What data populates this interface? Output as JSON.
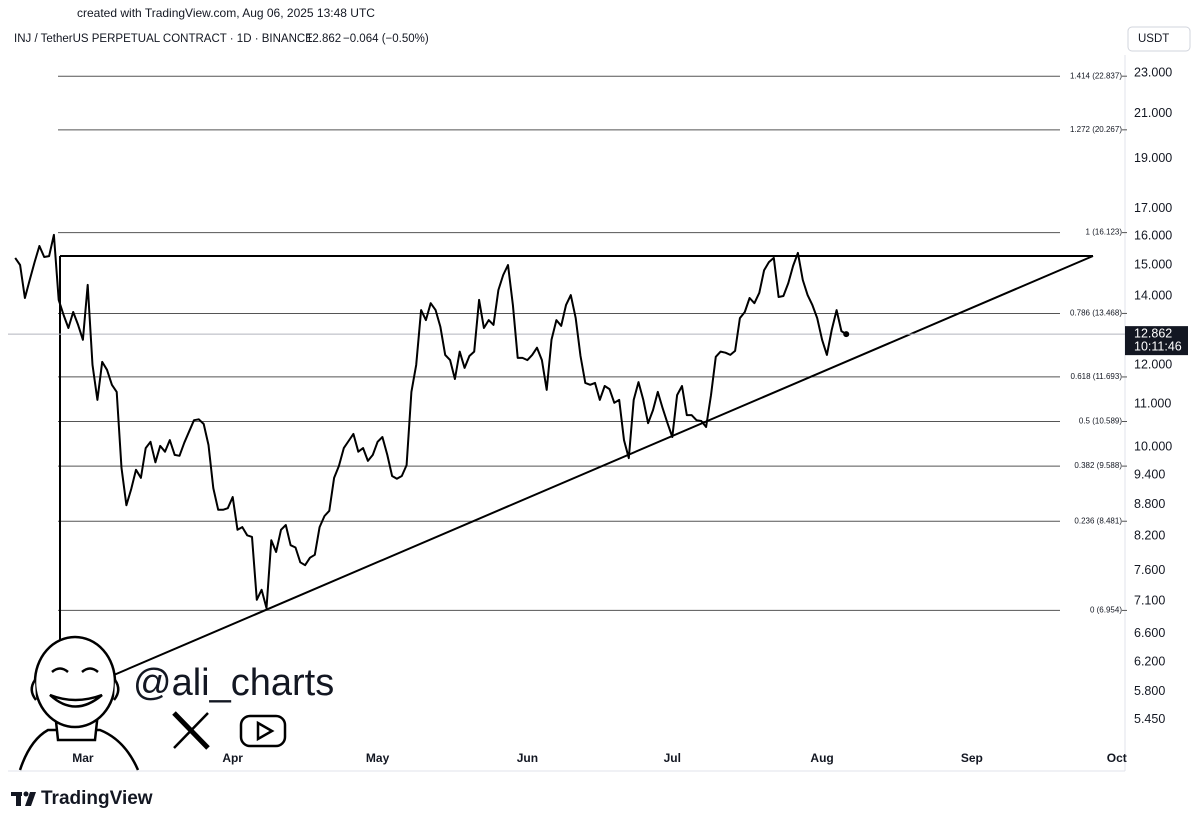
{
  "chart_data": {
    "type": "line",
    "attribution": "created with TradingView.com, Aug 06, 2025 13:48 UTC",
    "title": "INJ / TetherUS PERPETUAL CONTRACT · 1D · BINANCE",
    "change": "−0.064 (−0.50%)",
    "currency": "USDT",
    "countdown": "10:11:46",
    "watermark": "@ali_charts",
    "brand": "TradingView",
    "color": "#000000",
    "log": true,
    "grid": false,
    "xlim": [
      -1.5,
      229.7
    ],
    "ylim": [
      4.875,
      23.94
    ],
    "xticks": [
      {
        "value": 14,
        "label": "Mar"
      },
      {
        "value": 45,
        "label": "Apr"
      },
      {
        "value": 75,
        "label": "May"
      },
      {
        "value": 106,
        "label": "Jun"
      },
      {
        "value": 136,
        "label": "Jul"
      },
      {
        "value": 167,
        "label": "Aug"
      },
      {
        "value": 198,
        "label": "Sep"
      },
      {
        "value": 228,
        "label": "Oct"
      }
    ],
    "yticks": [
      {
        "value": 23,
        "label": "23.000"
      },
      {
        "value": 21,
        "label": "21.000"
      },
      {
        "value": 19,
        "label": "19.000"
      },
      {
        "value": 17,
        "label": "17.000"
      },
      {
        "value": 16,
        "label": "16.000"
      },
      {
        "value": 15,
        "label": "15.000"
      },
      {
        "value": 14,
        "label": "14.000"
      },
      {
        "value": 12,
        "label": "12.000"
      },
      {
        "value": 11,
        "label": "11.000"
      },
      {
        "value": 10,
        "label": "10.000"
      },
      {
        "value": 9.4,
        "label": "9.400"
      },
      {
        "value": 8.8,
        "label": "8.800"
      },
      {
        "value": 8.2,
        "label": "8.200"
      },
      {
        "value": 7.6,
        "label": "7.600"
      },
      {
        "value": 7.1,
        "label": "7.100"
      },
      {
        "value": 6.6,
        "label": "6.600"
      },
      {
        "value": 6.2,
        "label": "6.200"
      },
      {
        "value": 5.8,
        "label": "5.800"
      },
      {
        "value": 5.45,
        "label": "5.450"
      }
    ],
    "fib_levels": [
      {
        "value": 22.837,
        "label": "1.414 (22.837)"
      },
      {
        "value": 20.267,
        "label": "1.272 (20.267)"
      },
      {
        "value": 16.123,
        "label": "1 (16.123)"
      },
      {
        "value": 13.468,
        "label": "0.786 (13.468)"
      },
      {
        "value": 11.693,
        "label": "0.618 (11.693)"
      },
      {
        "value": 10.589,
        "label": "0.5 (10.589)"
      },
      {
        "value": 9.588,
        "label": "0.382 (9.588)"
      },
      {
        "value": 8.481,
        "label": "0.236 (8.481)"
      },
      {
        "value": 6.954,
        "label": "0 (6.954)"
      }
    ],
    "values": [
      15.24,
      15.0,
      13.94,
      14.51,
      15.1,
      15.65,
      15.27,
      15.3,
      16.04,
      13.88,
      13.42,
      13.04,
      13.51,
      13.13,
      12.7,
      14.35,
      12.01,
      11.11,
      12.09,
      11.88,
      11.49,
      11.31,
      9.55,
      8.79,
      9.11,
      9.51,
      9.34,
      9.98,
      10.12,
      9.67,
      10.03,
      9.9,
      10.16,
      9.83,
      9.81,
      10.1,
      10.36,
      10.62,
      10.64,
      10.53,
      10.05,
      9.13,
      8.7,
      8.7,
      8.73,
      8.95,
      8.32,
      8.37,
      8.22,
      8.19,
      7.12,
      7.28,
      6.99,
      8.13,
      7.92,
      8.32,
      8.41,
      8.04,
      8.0,
      7.74,
      7.69,
      7.82,
      7.87,
      8.37,
      8.58,
      8.68,
      9.34,
      9.59,
      9.98,
      10.14,
      10.3,
      9.9,
      9.98,
      9.7,
      9.83,
      10.12,
      10.23,
      9.83,
      9.38,
      9.32,
      9.38,
      9.61,
      11.31,
      12.01,
      13.57,
      13.27,
      13.78,
      13.57,
      13.07,
      12.28,
      12.14,
      11.64,
      12.37,
      11.93,
      12.25,
      12.37,
      13.88,
      13.04,
      13.27,
      13.13,
      14.19,
      14.67,
      15.0,
      13.72,
      12.2,
      12.2,
      12.14,
      12.28,
      12.48,
      12.14,
      11.36,
      12.7,
      13.27,
      13.1,
      13.72,
      14.03,
      13.33,
      12.25,
      11.54,
      11.49,
      11.54,
      11.11,
      11.46,
      11.38,
      11.04,
      11.11,
      10.16,
      9.76,
      11.11,
      11.56,
      11.11,
      10.55,
      10.86,
      11.31,
      10.91,
      10.55,
      10.23,
      11.23,
      11.46,
      10.74,
      10.74,
      10.62,
      10.6,
      10.46,
      11.23,
      12.23,
      12.37,
      12.34,
      12.28,
      12.39,
      13.33,
      13.51,
      13.94,
      13.78,
      14.1,
      14.83,
      15.1,
      15.24,
      13.97,
      14.0,
      14.41,
      14.97,
      15.41,
      14.51,
      14.03,
      13.72,
      13.33,
      12.7,
      12.28,
      12.98,
      13.57,
      12.95,
      12.862
    ]
  }
}
